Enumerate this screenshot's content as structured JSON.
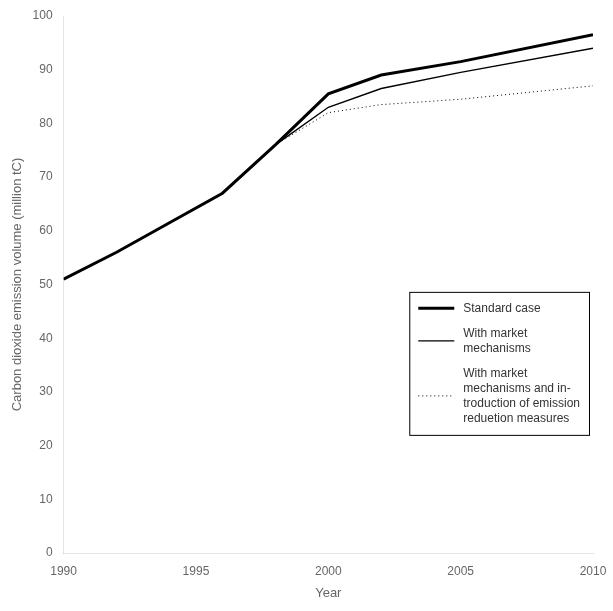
{
  "chart_data": {
    "type": "line",
    "xlabel": "Year",
    "ylabel": "Carbon dioxide emission volume (million tC)",
    "x": [
      1990,
      1992,
      1994,
      1996,
      1998,
      2000,
      2002,
      2005,
      2010
    ],
    "series": [
      {
        "name": "Standard case",
        "color": "#000000",
        "line_style": "solid",
        "values": [
          51.0,
          56.0,
          61.5,
          67.0,
          76.0,
          85.5,
          89.0,
          91.5,
          96.5
        ]
      },
      {
        "name": "With market\nmechanisms",
        "color": "#000000",
        "line_style": "solid",
        "values": [
          51.0,
          56.0,
          61.5,
          67.0,
          76.0,
          83.0,
          86.5,
          89.5,
          94.0
        ]
      },
      {
        "name": "With market\nmechanisms and in-\ntroduction of emission\nreduetion measures",
        "color": "#000000",
        "line_style": "dotted",
        "values": [
          51.0,
          56.0,
          61.5,
          67.0,
          76.0,
          82.0,
          83.5,
          84.5,
          87.0
        ]
      }
    ],
    "xlim": [
      1990,
      2010
    ],
    "ylim": [
      0,
      100
    ],
    "xticks": [
      1990,
      1995,
      2000,
      2005,
      2010
    ],
    "yticks": [
      0,
      10,
      20,
      30,
      40,
      50,
      60,
      70,
      80,
      90,
      100
    ],
    "grid": false,
    "legend": "lower right"
  }
}
